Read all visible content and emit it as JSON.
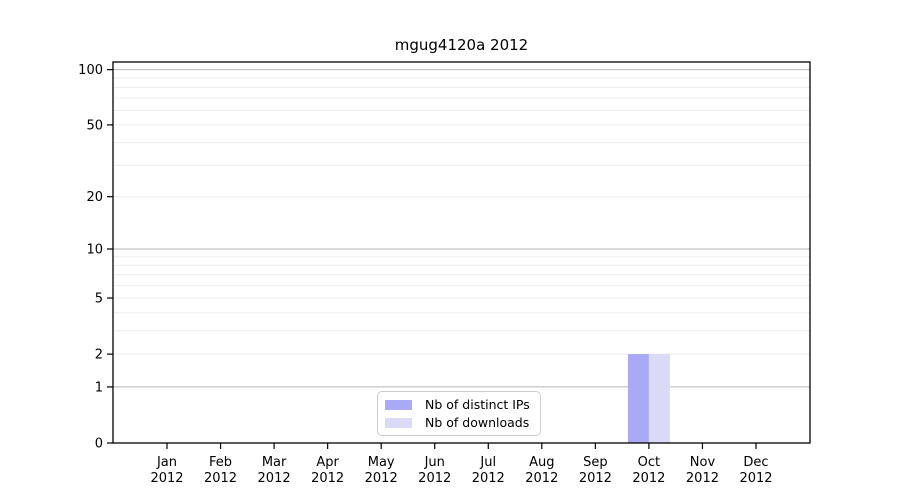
{
  "chart_data": {
    "type": "bar",
    "title": "mgug4120a 2012",
    "categories": [
      "Jan 2012",
      "Feb 2012",
      "Mar 2012",
      "Apr 2012",
      "May 2012",
      "Jun 2012",
      "Jul 2012",
      "Aug 2012",
      "Sep 2012",
      "Oct 2012",
      "Nov 2012",
      "Dec 2012"
    ],
    "x_tick_line1": [
      "Jan",
      "Feb",
      "Mar",
      "Apr",
      "May",
      "Jun",
      "Jul",
      "Aug",
      "Sep",
      "Oct",
      "Nov",
      "Dec"
    ],
    "x_tick_line2": [
      "2012",
      "2012",
      "2012",
      "2012",
      "2012",
      "2012",
      "2012",
      "2012",
      "2012",
      "2012",
      "2012",
      "2012"
    ],
    "series": [
      {
        "name": "Nb of distinct IPs",
        "color": "#a9a9f5",
        "values": [
          0,
          0,
          0,
          0,
          0,
          0,
          0,
          0,
          0,
          2,
          0,
          0
        ]
      },
      {
        "name": "Nb of downloads",
        "color": "#dadaf7",
        "values": [
          0,
          0,
          0,
          0,
          0,
          0,
          0,
          0,
          0,
          2,
          0,
          0
        ]
      }
    ],
    "xlabel": "",
    "ylabel": "",
    "y_scale": "log1p",
    "ylim": [
      0,
      110
    ],
    "y_ticks": [
      0,
      1,
      2,
      5,
      10,
      20,
      50,
      100
    ],
    "grid": {
      "major_values": [
        1,
        10,
        100
      ],
      "minor_values": [
        2,
        3,
        4,
        5,
        6,
        7,
        8,
        9,
        20,
        30,
        40,
        50,
        60,
        70,
        80,
        90
      ],
      "major_color": "#b4b4b4",
      "minor_color": "#ebebeb"
    },
    "legend": {
      "position": "bottom-center-inside"
    },
    "axis_color": "#000000",
    "background": "#ffffff"
  }
}
